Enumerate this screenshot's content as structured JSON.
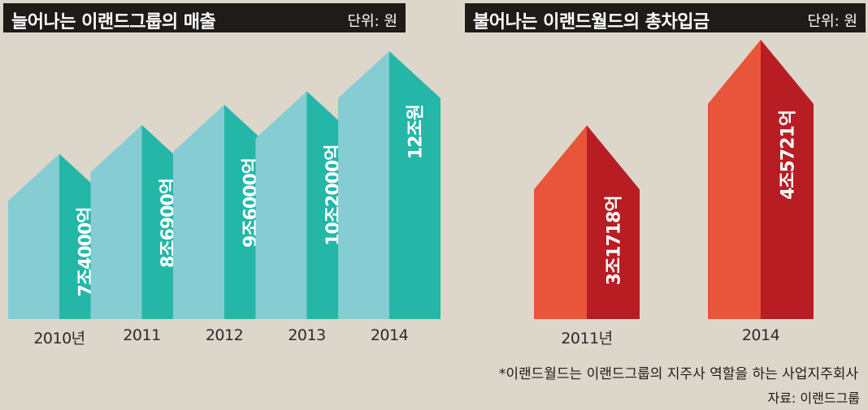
{
  "charts": [
    {
      "title": "늘어나는 이랜드그룹의 매출",
      "unit": "단위: 원",
      "colors": {
        "light": "#85ccd3",
        "dark": "#24b7a8"
      }
    },
    {
      "title": "불어나는 이랜드월드의 총차입금",
      "unit": "단위: 원",
      "colors": {
        "light": "#e8553a",
        "dark": "#b71d22"
      }
    }
  ],
  "chart_data": [
    {
      "type": "bar",
      "title": "늘어나는 이랜드그룹의 매출",
      "unit": "원",
      "categories": [
        "2010년",
        "2011",
        "2012",
        "2013",
        "2014"
      ],
      "values": [
        74000,
        86900,
        96000,
        102000,
        120000
      ],
      "value_unit": "억원",
      "data_labels": [
        "7조4000억",
        "8조6900억",
        "9조6000억",
        "10조2000억",
        "12조원"
      ],
      "ylim": [
        0,
        125000
      ]
    },
    {
      "type": "bar",
      "title": "불어나는 이랜드월드의 총차입금",
      "unit": "원",
      "categories": [
        "2011년",
        "2014"
      ],
      "values": [
        31718,
        45721
      ],
      "value_unit": "억원",
      "data_labels": [
        "3조1718억",
        "4조5721억"
      ],
      "ylim": [
        0,
        46000
      ]
    }
  ],
  "footnote": "*이랜드월드는 이랜드그룹의 지주사 역할을 하는 사업지주회사",
  "source": "자료: 이랜드그룹"
}
